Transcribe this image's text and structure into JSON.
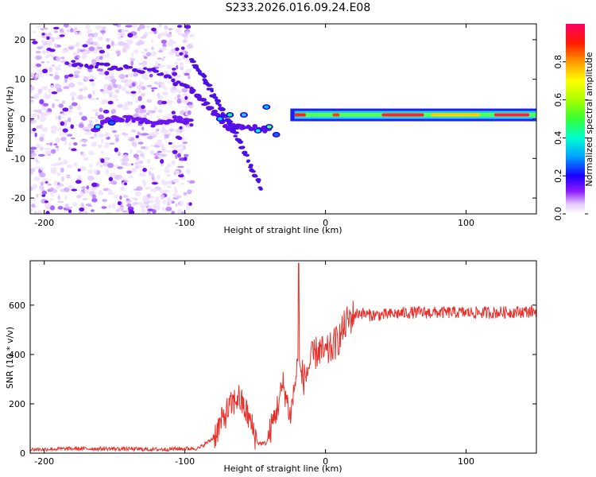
{
  "title": "S233.2026.016.09.24.E08",
  "chart_data": [
    {
      "type": "heatmap",
      "xlabel": "Height of straight line (km)",
      "ylabel": "Frequency (Hz)",
      "xlim": [
        -210,
        150
      ],
      "ylim": [
        -24,
        24
      ],
      "xticks": [
        -200,
        -100,
        0,
        100
      ],
      "yticks": [
        -20,
        -10,
        0,
        10,
        20
      ],
      "colorbar": {
        "label": "Normalized spectral amplitude",
        "range": [
          0,
          1
        ],
        "ticks": [
          0.0,
          0.2,
          0.4,
          0.6,
          0.8
        ]
      },
      "features": {
        "noise_region_km": [
          -210,
          -95
        ],
        "signal_line_hz": 1,
        "signal_start_km": -25
      }
    },
    {
      "type": "line",
      "xlabel": "Height of straight line (km)",
      "ylabel": "SNR (10 * v/v)",
      "xlim": [
        -210,
        150
      ],
      "ylim": [
        0,
        780
      ],
      "xticks": [
        -200,
        -100,
        0,
        100
      ],
      "yticks": [
        0,
        200,
        400,
        600
      ],
      "color": "#e8302a",
      "x": [
        -210,
        -180,
        -150,
        -120,
        -90,
        -80,
        -70,
        -62,
        -55,
        -48,
        -42,
        -35,
        -30,
        -25,
        -20,
        -15,
        -10,
        -5,
        0,
        5,
        10,
        15,
        20,
        25,
        30,
        40,
        60,
        80,
        100,
        120,
        150
      ],
      "y": [
        15,
        18,
        18,
        15,
        20,
        60,
        170,
        230,
        150,
        40,
        40,
        170,
        280,
        150,
        350,
        300,
        380,
        420,
        400,
        430,
        470,
        530,
        560,
        570,
        560,
        560,
        570,
        570,
        570,
        570,
        575
      ],
      "spike": {
        "x": -19,
        "y": 770
      }
    }
  ]
}
